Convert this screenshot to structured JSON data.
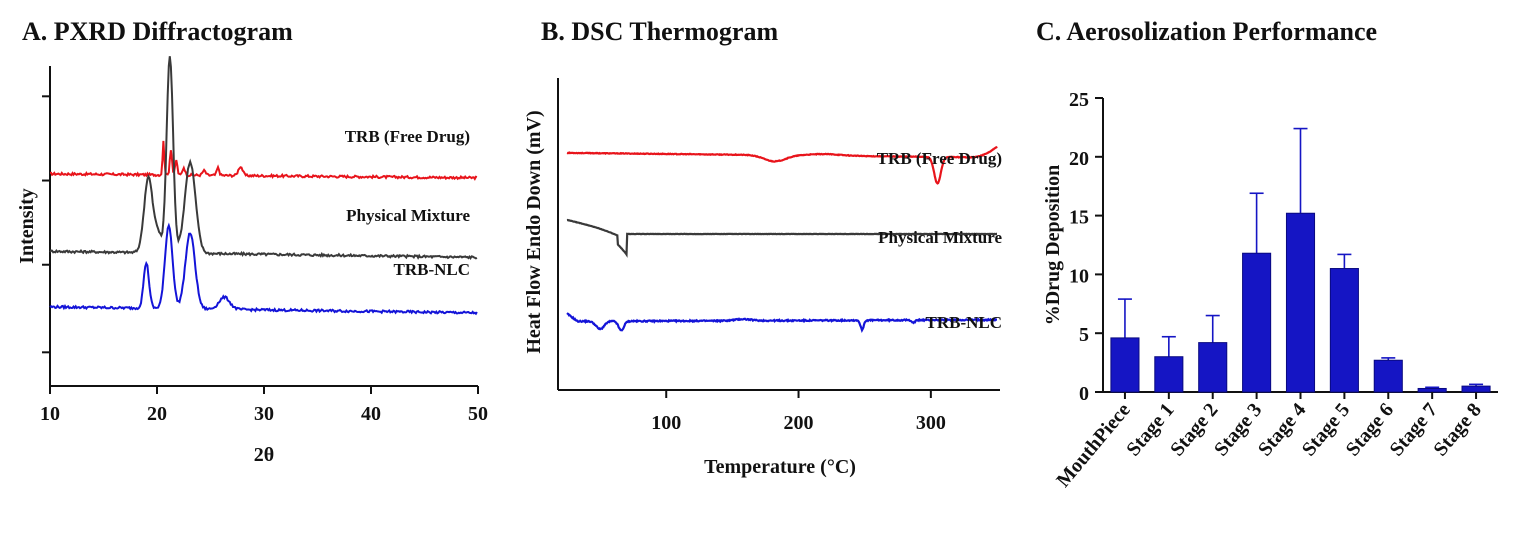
{
  "chart_data": [
    {
      "id": "pxrd",
      "type": "line",
      "title": "A. PXRD Diffractogram",
      "xlabel": "2θ",
      "ylabel": "Intensity",
      "xlim": [
        10,
        50
      ],
      "xticks": [
        "10",
        "20",
        "30",
        "40",
        "50"
      ],
      "grid": false,
      "series": [
        {
          "name": "TRB (Free Drug)",
          "color": "#e8141b",
          "baseline": 6.3,
          "drift": -0.12,
          "noise": 0.035,
          "peaks": [
            [
              20.6,
              0.22,
              0.08
            ],
            [
              21.3,
              0.17,
              0.1
            ],
            [
              21.8,
              0.1,
              0.1
            ],
            [
              22.5,
              0.05,
              0.12
            ],
            [
              25.7,
              0.05,
              0.12
            ],
            [
              27.8,
              0.06,
              0.2
            ],
            [
              24.4,
              0.03,
              0.15
            ]
          ]
        },
        {
          "name": "Physical Mixture",
          "color": "#3a3a3a",
          "baseline": 4.0,
          "drift": -0.18,
          "noise": 0.035,
          "peaks": [
            [
              19.2,
              0.5,
              0.4
            ],
            [
              21.2,
              1.3,
              0.3
            ],
            [
              23.1,
              0.6,
              0.5
            ],
            [
              20.1,
              0.12,
              0.3
            ]
          ]
        },
        {
          "name": "TRB-NLC",
          "color": "#1414d8",
          "baseline": 2.35,
          "drift": -0.18,
          "noise": 0.035,
          "peaks": [
            [
              19.0,
              0.3,
              0.25
            ],
            [
              21.1,
              0.55,
              0.35
            ],
            [
              23.1,
              0.5,
              0.45
            ],
            [
              26.3,
              0.08,
              0.5
            ]
          ]
        }
      ]
    },
    {
      "id": "dsc",
      "type": "line",
      "title": "B. DSC Thermogram",
      "xlabel": "Temperature (°C)",
      "ylabel": "Heat Flow Endo Down (mV)",
      "xlim": [
        25,
        350
      ],
      "xticks": [
        "100",
        "200",
        "300"
      ],
      "grid": false,
      "series": [
        {
          "name": "TRB (Free Drug)",
          "color": "#e8141b",
          "baseline": 7.6,
          "drift": -0.15,
          "noise": 0.01,
          "features": [
            [
              182,
              -0.2,
              8
            ],
            [
              220,
              0.05,
              12
            ],
            [
              305,
              -0.85,
              2.5
            ]
          ],
          "rise": [
            330,
            0.35
          ]
        },
        {
          "name": "Physical Mixture",
          "color": "#3a3a3a",
          "baseline": 5.0,
          "drift": 0.0,
          "noise": 0.005,
          "ramp": [
            25,
            70,
            0.45
          ]
        },
        {
          "name": "TRB-NLC",
          "color": "#1414d8",
          "baseline": 2.2,
          "drift": 0.05,
          "noise": 0.02,
          "features": [
            [
              50,
              -0.25,
              3
            ],
            [
              66,
              -0.3,
              2
            ],
            [
              158,
              0.05,
              6
            ],
            [
              248,
              -0.3,
              1.2
            ],
            [
              287,
              -0.08,
              1.2
            ]
          ],
          "start_high": 0.25
        }
      ]
    },
    {
      "id": "aero",
      "type": "bar",
      "title": "C. Aerosolization Performance",
      "xlabel": "",
      "ylabel": "%Drug Deposition",
      "ylim": [
        0,
        25
      ],
      "yticks": [
        "0",
        "5",
        "10",
        "15",
        "20",
        "25"
      ],
      "grid": false,
      "color": "#1515c4",
      "categories": [
        "MouthPiece",
        "Stage 1",
        "Stage 2",
        "Stage 3",
        "Stage 4",
        "Stage 5",
        "Stage 6",
        "Stage 7",
        "Stage 8"
      ],
      "values": [
        4.6,
        3.0,
        4.2,
        11.8,
        15.2,
        10.5,
        2.7,
        0.3,
        0.5
      ],
      "errors": [
        3.3,
        1.7,
        2.3,
        5.1,
        7.2,
        1.2,
        0.2,
        0.1,
        0.15
      ]
    }
  ]
}
